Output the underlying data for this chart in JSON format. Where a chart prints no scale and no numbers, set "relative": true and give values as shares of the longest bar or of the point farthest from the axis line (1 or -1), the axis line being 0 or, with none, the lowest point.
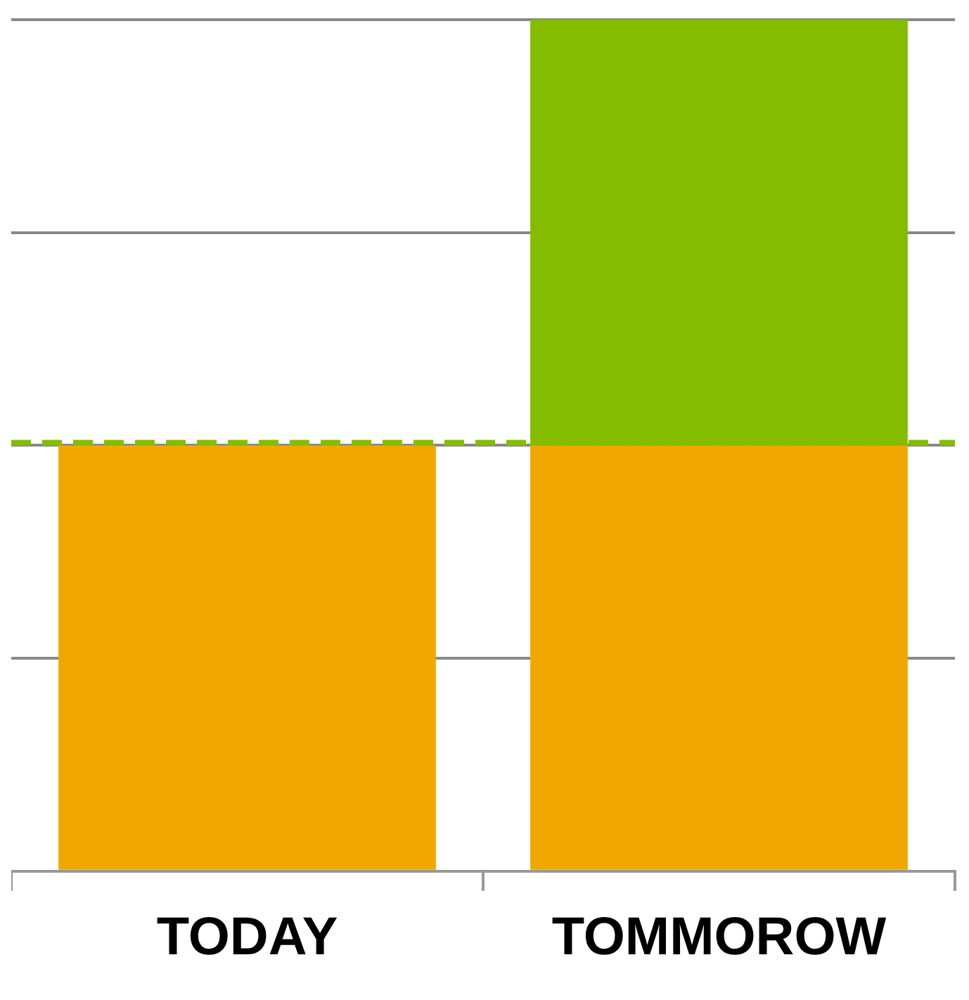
{
  "chart_data": {
    "type": "bar",
    "categories": [
      "TODAY",
      "TOMMOROW"
    ],
    "stacked": true,
    "relative": true,
    "grid": "y",
    "legend": false,
    "series": [
      {
        "color": "#f0a800",
        "values": [
          0.5,
          0.5
        ]
      },
      {
        "color": "#84bd00",
        "values": [
          null,
          0.5
        ]
      }
    ],
    "ref_lines": [
      {
        "axis": "y",
        "value": 0.5,
        "color": "#84bd00",
        "line_style": "dashed"
      }
    ]
  }
}
